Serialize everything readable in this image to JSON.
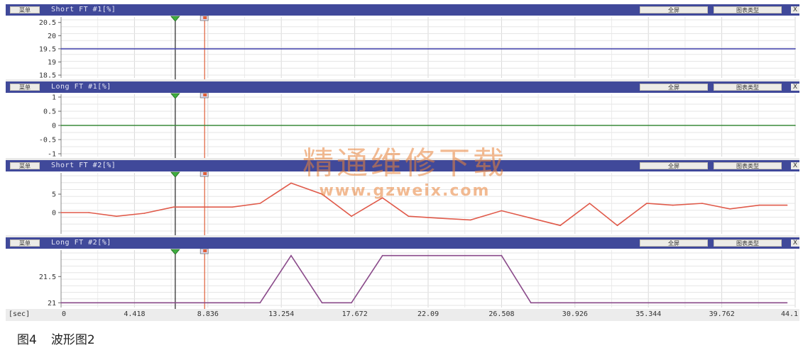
{
  "panels": [
    {
      "title": "Short FT #1[%]",
      "btn_left": "菜单",
      "btn_fullscreen": "全屏",
      "btn_graphtype": "图表类型",
      "yticks": [
        "20.5",
        "20",
        "19.5",
        "19",
        "18.5"
      ],
      "ylim": [
        18.5,
        20.6
      ],
      "line_color": "#4b4bb0"
    },
    {
      "title": "Long FT #1[%]",
      "btn_left": "菜单",
      "btn_fullscreen": "全屏",
      "btn_graphtype": "图表类型",
      "yticks": [
        "1",
        "0.5",
        "0",
        "-0.5",
        "-1"
      ],
      "ylim": [
        -1,
        1
      ],
      "line_color": "#3a8a3a"
    },
    {
      "title": "Short FT #2[%]",
      "btn_left": "菜单",
      "btn_fullscreen": "全屏",
      "btn_graphtype": "图表类型",
      "yticks": [
        "5",
        "0"
      ],
      "ylim": [
        -5,
        10
      ],
      "line_color": "#e05a4a"
    },
    {
      "title": "Long FT #2[%]",
      "btn_left": "菜单",
      "btn_fullscreen": "全屏",
      "btn_graphtype": "图表类型",
      "yticks": [
        "21.5",
        "21"
      ],
      "ylim": [
        20.95,
        21.95
      ],
      "line_color": "#8a4a8a"
    }
  ],
  "close_glyph": "X",
  "x_axis": {
    "unit": "[sec]",
    "ticks": [
      "0",
      "4.418",
      "8.836",
      "13.254",
      "17.672",
      "22.09",
      "26.508",
      "30.926",
      "35.344",
      "39.762",
      "44.1"
    ]
  },
  "chart_data": [
    {
      "type": "line",
      "series": [
        {
          "name": "Short FT #1[%]",
          "x": [
            0,
            45
          ],
          "values": [
            19.5,
            19.5
          ]
        }
      ],
      "xlim": [
        0,
        45
      ],
      "ylim": [
        18.5,
        20.5
      ],
      "ylabel": "",
      "xlabel": "[sec]",
      "grid": true
    },
    {
      "type": "line",
      "series": [
        {
          "name": "Long FT #1[%]",
          "x": [
            0,
            45
          ],
          "values": [
            0,
            0
          ]
        }
      ],
      "xlim": [
        0,
        45
      ],
      "ylim": [
        -1,
        1
      ],
      "ylabel": "",
      "xlabel": "[sec]",
      "grid": true
    },
    {
      "type": "line",
      "series": [
        {
          "name": "Short FT #2[%]",
          "x": [
            0,
            1.7,
            3.4,
            5.1,
            6.9,
            8.7,
            10.5,
            12.2,
            14.1,
            16.0,
            17.8,
            19.7,
            21.3,
            23.1,
            25.1,
            27.0,
            28.8,
            30.6,
            32.4,
            34.1,
            35.9,
            37.5,
            39.3,
            41.0,
            42.8,
            44.5
          ],
          "values": [
            0,
            0,
            -1,
            -0.2,
            1.5,
            1.5,
            1.5,
            2.5,
            8.0,
            5.0,
            -1.0,
            4.0,
            -1.0,
            -1.5,
            -2.0,
            0.5,
            -1.5,
            -3.5,
            2.5,
            -3.5,
            2.5,
            2.0,
            2.5,
            1.0,
            2.0,
            2.0
          ]
        }
      ],
      "xlim": [
        0,
        45
      ],
      "ylim": [
        -5,
        10
      ],
      "ylabel": "",
      "xlabel": "[sec]",
      "grid": true
    },
    {
      "type": "line",
      "series": [
        {
          "name": "Long FT #2[%]",
          "x": [
            0,
            10.5,
            12.2,
            14.1,
            16.0,
            17.8,
            19.7,
            21.3,
            23.1,
            25.1,
            27.0,
            28.8,
            30.6,
            44.5
          ],
          "values": [
            21,
            21,
            21,
            21.9,
            21,
            21,
            21.9,
            21.9,
            21.9,
            21.9,
            21.9,
            21,
            21,
            21
          ]
        }
      ],
      "xlim": [
        0,
        45
      ],
      "ylim": [
        20.95,
        21.95
      ],
      "ylabel": "",
      "xlabel": "[sec]",
      "grid": true
    }
  ],
  "markers": {
    "cursor_a_x": 7.0,
    "cursor_b_x": 8.8
  },
  "watermark": {
    "line1": "精通维修下载",
    "line2": "www.gzweix.com"
  },
  "caption": {
    "figure_no": "图4",
    "title": "波形图2"
  }
}
